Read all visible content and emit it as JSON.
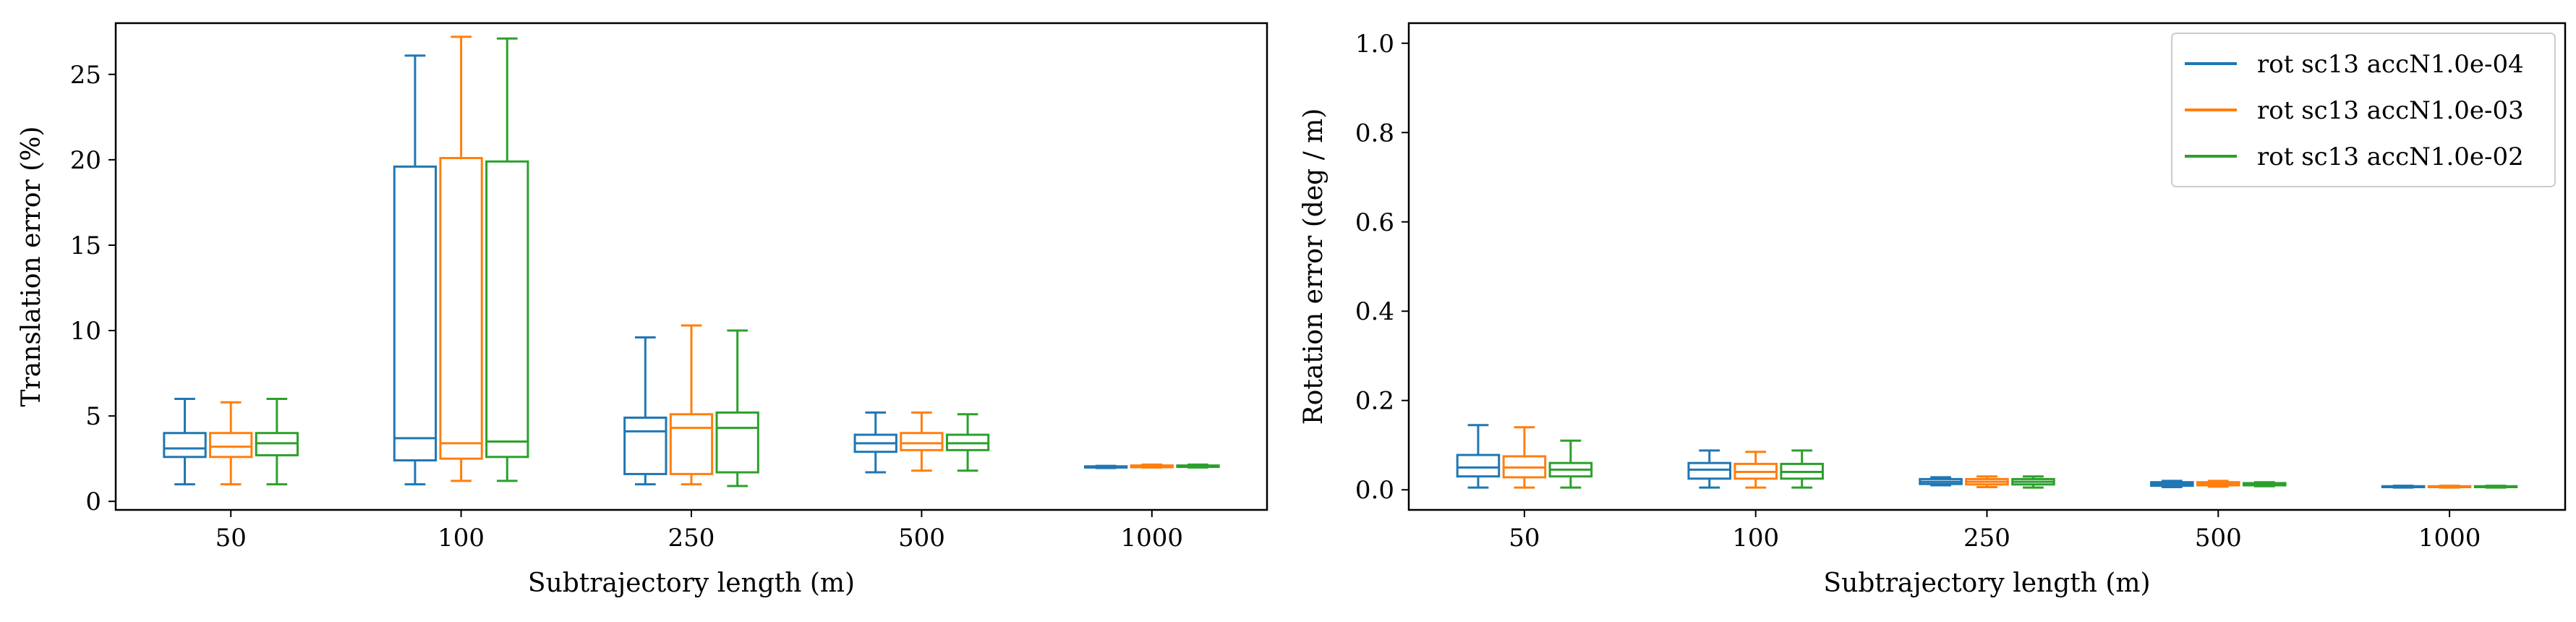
{
  "chart_data": [
    {
      "type": "boxplot",
      "xlabel": "Subtrajectory length (m)",
      "ylabel": "Translation error (%)",
      "categories": [
        "50",
        "100",
        "250",
        "500",
        "1000"
      ],
      "ylim": [
        -0.5,
        28
      ],
      "yticks": [
        0,
        5,
        10,
        15,
        20,
        25
      ],
      "legend": false,
      "series": [
        {
          "name": "rot sc13 accN1.0e-04",
          "color": "#1f77b4",
          "boxes": [
            {
              "whislo": 1.0,
              "q1": 2.6,
              "med": 3.1,
              "q3": 4.0,
              "whishi": 6.0
            },
            {
              "whislo": 1.0,
              "q1": 2.4,
              "med": 3.7,
              "q3": 19.6,
              "whishi": 26.1
            },
            {
              "whislo": 1.0,
              "q1": 1.6,
              "med": 4.1,
              "q3": 4.9,
              "whishi": 9.6
            },
            {
              "whislo": 1.7,
              "q1": 2.9,
              "med": 3.4,
              "q3": 3.9,
              "whishi": 5.2
            },
            {
              "whislo": 1.95,
              "q1": 1.98,
              "med": 2.0,
              "q3": 2.05,
              "whishi": 2.08
            }
          ]
        },
        {
          "name": "rot sc13 accN1.0e-03",
          "color": "#ff7f0e",
          "boxes": [
            {
              "whislo": 1.0,
              "q1": 2.6,
              "med": 3.2,
              "q3": 4.0,
              "whishi": 5.8
            },
            {
              "whislo": 1.2,
              "q1": 2.5,
              "med": 3.4,
              "q3": 20.1,
              "whishi": 27.2
            },
            {
              "whislo": 1.0,
              "q1": 1.6,
              "med": 4.3,
              "q3": 5.1,
              "whishi": 10.3
            },
            {
              "whislo": 1.8,
              "q1": 3.0,
              "med": 3.4,
              "q3": 4.0,
              "whishi": 5.2
            },
            {
              "whislo": 1.98,
              "q1": 2.0,
              "med": 2.05,
              "q3": 2.1,
              "whishi": 2.15
            }
          ]
        },
        {
          "name": "rot sc13 accN1.0e-02",
          "color": "#2ca02c",
          "boxes": [
            {
              "whislo": 1.0,
              "q1": 2.7,
              "med": 3.4,
              "q3": 4.0,
              "whishi": 6.0
            },
            {
              "whislo": 1.2,
              "q1": 2.6,
              "med": 3.5,
              "q3": 19.9,
              "whishi": 27.1
            },
            {
              "whislo": 0.9,
              "q1": 1.7,
              "med": 4.3,
              "q3": 5.2,
              "whishi": 10.0
            },
            {
              "whislo": 1.8,
              "q1": 3.0,
              "med": 3.4,
              "q3": 3.9,
              "whishi": 5.1
            },
            {
              "whislo": 1.98,
              "q1": 2.02,
              "med": 2.05,
              "q3": 2.1,
              "whishi": 2.15
            }
          ]
        }
      ]
    },
    {
      "type": "boxplot",
      "xlabel": "Subtrajectory length (m)",
      "ylabel": "Rotation error (deg / m)",
      "categories": [
        "50",
        "100",
        "250",
        "500",
        "1000"
      ],
      "ylim": [
        -0.045,
        1.045
      ],
      "yticks": [
        0.0,
        0.2,
        0.4,
        0.6,
        0.8,
        1.0
      ],
      "ytick_labels": [
        "0.0",
        "0.2",
        "0.4",
        "0.6",
        "0.8",
        "1.0"
      ],
      "legend": true,
      "legend_position": "top-right",
      "series": [
        {
          "name": "rot sc13 accN1.0e-04",
          "color": "#1f77b4",
          "boxes": [
            {
              "whislo": 0.005,
              "q1": 0.03,
              "med": 0.05,
              "q3": 0.078,
              "whishi": 0.145
            },
            {
              "whislo": 0.005,
              "q1": 0.025,
              "med": 0.045,
              "q3": 0.06,
              "whishi": 0.088
            },
            {
              "whislo": 0.01,
              "q1": 0.013,
              "med": 0.018,
              "q3": 0.024,
              "whishi": 0.028
            },
            {
              "whislo": 0.006,
              "q1": 0.009,
              "med": 0.013,
              "q3": 0.017,
              "whishi": 0.02
            },
            {
              "whislo": 0.005,
              "q1": 0.006,
              "med": 0.007,
              "q3": 0.008,
              "whishi": 0.009
            }
          ]
        },
        {
          "name": "rot sc13 accN1.0e-03",
          "color": "#ff7f0e",
          "boxes": [
            {
              "whislo": 0.005,
              "q1": 0.028,
              "med": 0.05,
              "q3": 0.075,
              "whishi": 0.14
            },
            {
              "whislo": 0.005,
              "q1": 0.025,
              "med": 0.04,
              "q3": 0.058,
              "whishi": 0.085
            },
            {
              "whislo": 0.006,
              "q1": 0.012,
              "med": 0.018,
              "q3": 0.024,
              "whishi": 0.03
            },
            {
              "whislo": 0.007,
              "q1": 0.01,
              "med": 0.013,
              "q3": 0.017,
              "whishi": 0.02
            },
            {
              "whislo": 0.005,
              "q1": 0.006,
              "med": 0.007,
              "q3": 0.008,
              "whishi": 0.009
            }
          ]
        },
        {
          "name": "rot sc13 accN1.0e-02",
          "color": "#2ca02c",
          "boxes": [
            {
              "whislo": 0.005,
              "q1": 0.03,
              "med": 0.045,
              "q3": 0.06,
              "whishi": 0.11
            },
            {
              "whislo": 0.005,
              "q1": 0.025,
              "med": 0.04,
              "q3": 0.058,
              "whishi": 0.088
            },
            {
              "whislo": 0.005,
              "q1": 0.012,
              "med": 0.018,
              "q3": 0.024,
              "whishi": 0.03
            },
            {
              "whislo": 0.008,
              "q1": 0.01,
              "med": 0.013,
              "q3": 0.015,
              "whishi": 0.017
            },
            {
              "whislo": 0.005,
              "q1": 0.006,
              "med": 0.007,
              "q3": 0.008,
              "whishi": 0.009
            }
          ]
        }
      ]
    }
  ]
}
